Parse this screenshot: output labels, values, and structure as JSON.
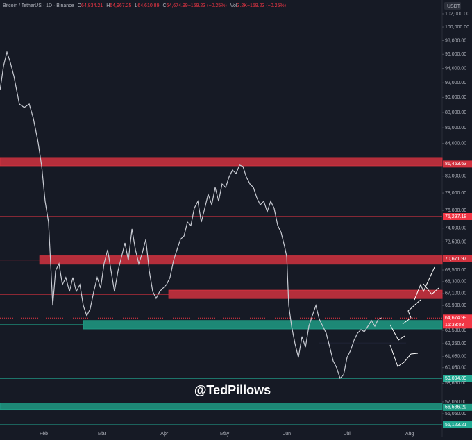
{
  "chart_data": {
    "type": "line",
    "header": {
      "symbol": "Bitcoin / TetherUS · 1D · Binance",
      "fields": [
        [
          "O",
          "64,834.21"
        ],
        [
          "H",
          "64,967.25"
        ],
        [
          "L",
          "64,610.89"
        ],
        [
          "C",
          "64,674.99"
        ],
        [
          "",
          "−159.23 (−0.25%)"
        ],
        [
          "Vol",
          "3.2K"
        ],
        [
          "",
          "−159.23 (−0.25%)"
        ]
      ]
    },
    "currency": "USDT",
    "watermark": "@TedPillows",
    "log_scale": true,
    "xlim": [
      10.25,
      230.2
    ],
    "ylim": [
      54160,
      104140
    ],
    "xticks": [
      {
        "value": 32,
        "label": "Feb"
      },
      {
        "value": 61,
        "label": "Mar"
      },
      {
        "value": 92,
        "label": "Apr"
      },
      {
        "value": 122,
        "label": "May"
      },
      {
        "value": 153,
        "label": "Jun"
      },
      {
        "value": 183,
        "label": "Jul"
      },
      {
        "value": 214,
        "label": "Aug"
      }
    ],
    "yticks": [
      {
        "value": 102000,
        "label": "102,000.00"
      },
      {
        "value": 100000,
        "label": "100,000.00"
      },
      {
        "value": 98000,
        "label": "98,000.00"
      },
      {
        "value": 96000,
        "label": "96,000.00"
      },
      {
        "value": 94000,
        "label": "94,000.00"
      },
      {
        "value": 92000,
        "label": "92,000.00"
      },
      {
        "value": 90000,
        "label": "90,000.00"
      },
      {
        "value": 88000,
        "label": "88,000.00"
      },
      {
        "value": 86000,
        "label": "86,000.00"
      },
      {
        "value": 84000,
        "label": "84,000.00"
      },
      {
        "value": 80000,
        "label": "80,000.00"
      },
      {
        "value": 78000,
        "label": "78,000.00"
      },
      {
        "value": 76000,
        "label": "76,000.00"
      },
      {
        "value": 74000,
        "label": "74,000.00"
      },
      {
        "value": 72500,
        "label": "72,500.00"
      },
      {
        "value": 69500,
        "label": "69,500.00"
      },
      {
        "value": 68300,
        "label": "68,300.00"
      },
      {
        "value": 67100,
        "label": "67,100.00"
      },
      {
        "value": 65900,
        "label": "65,900.00"
      },
      {
        "value": 63500,
        "label": "63,500.00"
      },
      {
        "value": 62250,
        "label": "62,250.00"
      },
      {
        "value": 61050,
        "label": "61,050.00"
      },
      {
        "value": 60050,
        "label": "60,050.00"
      },
      {
        "value": 58650,
        "label": "58,650.00"
      },
      {
        "value": 57050,
        "label": "57,050.00"
      },
      {
        "value": 56050,
        "label": "56,050.00"
      }
    ],
    "series": [
      {
        "name": "BTCUSDT",
        "color": "#c9ccd4",
        "x": [
          10.3,
          12.0,
          13.7,
          15.4,
          17.2,
          19.9,
          22.3,
          24.8,
          26.8,
          29.2,
          31.0,
          32.7,
          34.4,
          35.1,
          36.5,
          37.9,
          39.6,
          41.3,
          43.0,
          44.8,
          46.5,
          48.2,
          50.0,
          51.7,
          53.4,
          55.1,
          56.9,
          58.6,
          60.3,
          62.0,
          63.8,
          65.5,
          67.2,
          69.0,
          70.7,
          72.4,
          74.1,
          75.9,
          77.6,
          79.3,
          81.0,
          82.8,
          84.5,
          86.2,
          87.9,
          89.7,
          91.4,
          93.1,
          94.8,
          96.6,
          98.3,
          100.0,
          101.8,
          103.5,
          105.2,
          106.9,
          108.7,
          110.4,
          112.1,
          113.8,
          115.6,
          117.3,
          119.0,
          120.7,
          122.5,
          124.2,
          125.9,
          127.7,
          129.4,
          131.1,
          132.8,
          134.6,
          136.3,
          138.0,
          139.7,
          141.5,
          143.2,
          144.9,
          146.6,
          148.4,
          150.1,
          151.8,
          152.9,
          153.9,
          155.3,
          157.0,
          158.7,
          160.5,
          162.2,
          163.9,
          165.6,
          167.4,
          169.1,
          170.8,
          172.5,
          174.3,
          176.0,
          177.7,
          179.4,
          181.2,
          182.9,
          184.6,
          186.4,
          188.1,
          189.8,
          191.5,
          193.3,
          195.0,
          196.7,
          198.4,
          200.2
        ],
        "values": [
          90990,
          94350,
          96330,
          94840,
          92890,
          89110,
          88650,
          89110,
          87270,
          84160,
          81150,
          77040,
          74670,
          71640,
          65910,
          69430,
          70160,
          68000,
          68720,
          67300,
          68720,
          67300,
          68000,
          65910,
          64890,
          65570,
          67300,
          68720,
          67650,
          70160,
          71640,
          69430,
          67300,
          69430,
          70890,
          72380,
          70520,
          73910,
          71640,
          70160,
          71270,
          72760,
          69430,
          67300,
          66610,
          67300,
          67650,
          68000,
          68720,
          70520,
          71640,
          72760,
          73140,
          74670,
          74290,
          76240,
          77040,
          74670,
          76240,
          77840,
          76630,
          78650,
          77040,
          79060,
          78650,
          79890,
          80730,
          80300,
          81330,
          81150,
          79890,
          79060,
          78650,
          77440,
          76630,
          77040,
          75850,
          77040,
          76240,
          74290,
          73520,
          72010,
          70890,
          65910,
          63890,
          62250,
          60970,
          62910,
          61920,
          63890,
          64890,
          65910,
          64560,
          63890,
          63230,
          61920,
          60650,
          60040,
          59100,
          59420,
          60970,
          61600,
          62580,
          63230,
          63560,
          63370,
          63890,
          64430,
          63890,
          64560,
          64700
        ]
      }
    ],
    "levels": [
      {
        "kind": "zone",
        "low": 81240,
        "high": 82250,
        "color": "#d1323f",
        "value": 81453.63,
        "label": "81,453.63"
      },
      {
        "kind": "line",
        "value": 75297.18,
        "label": "75,297.18",
        "color": "#f23645"
      },
      {
        "kind": "zone",
        "low": 70110,
        "high": 70990,
        "color": "#d1323f",
        "start": 30.0,
        "value": 70671.97,
        "label": "70,671.97"
      },
      {
        "kind": "zone",
        "low": 66600,
        "high": 67430,
        "color": "#d1323f",
        "start": 94.2
      },
      {
        "kind": "zone",
        "low": 63630,
        "high": 64440,
        "color": "#1f9c85",
        "start": 51.7
      },
      {
        "kind": "line",
        "value": 59094.09,
        "label": "59,094.09",
        "color": "#22ab94"
      },
      {
        "kind": "zone",
        "low": 56370,
        "high": 56960,
        "color": "#1f9c85",
        "value": 56586.29,
        "label": "56,586.29"
      },
      {
        "kind": "line",
        "value": 55123.21,
        "label": "55,123.21",
        "color": "#22ab94"
      }
    ],
    "support": {
      "value": 62300,
      "from": 169.1,
      "to": 212.3
    },
    "last": {
      "value": 64674.99,
      "label": "64,674.99",
      "timer": "15:33:03",
      "color": "#f23645"
    }
  }
}
